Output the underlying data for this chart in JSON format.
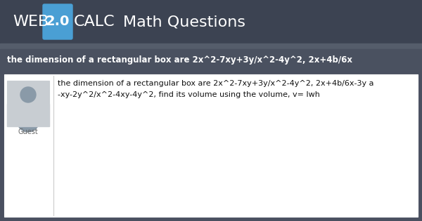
{
  "header_bg": "#3c4352",
  "header_text_web": "WEB",
  "header_text_20": "2.0",
  "header_text_calc": "CALC",
  "header_text_right": "Math Questions",
  "box20_bg": "#4a9fd4",
  "title_bg": "#4a5160",
  "title_text": "the dimension of a rectangular box are 2x^2-7xy+3y/x^2-4y^2, 2x+4b/6x",
  "title_color": "#ffffff",
  "sep_bg": "#555d6b",
  "content_bg": "#ffffff",
  "content_border": "#cccccc",
  "outer_bg": "#4a5060",
  "body_text_line1": "the dimension of a rectangular box are 2x^2-7xy+3y/x^2-4y^2, 2x+4b/6x-3y a",
  "body_text_line2": "-xy-2y^2/x^2-4xy-4y^2, find its volume using the volume, v= lwh",
  "avatar_bg": "#c8cdd2",
  "avatar_border": "#aab0b8",
  "avatar_icon": "#8a9aa8",
  "guest_label": "Guest",
  "guest_color": "#666666",
  "figwidth": 6.0,
  "figheight": 3.15,
  "dpi": 100
}
